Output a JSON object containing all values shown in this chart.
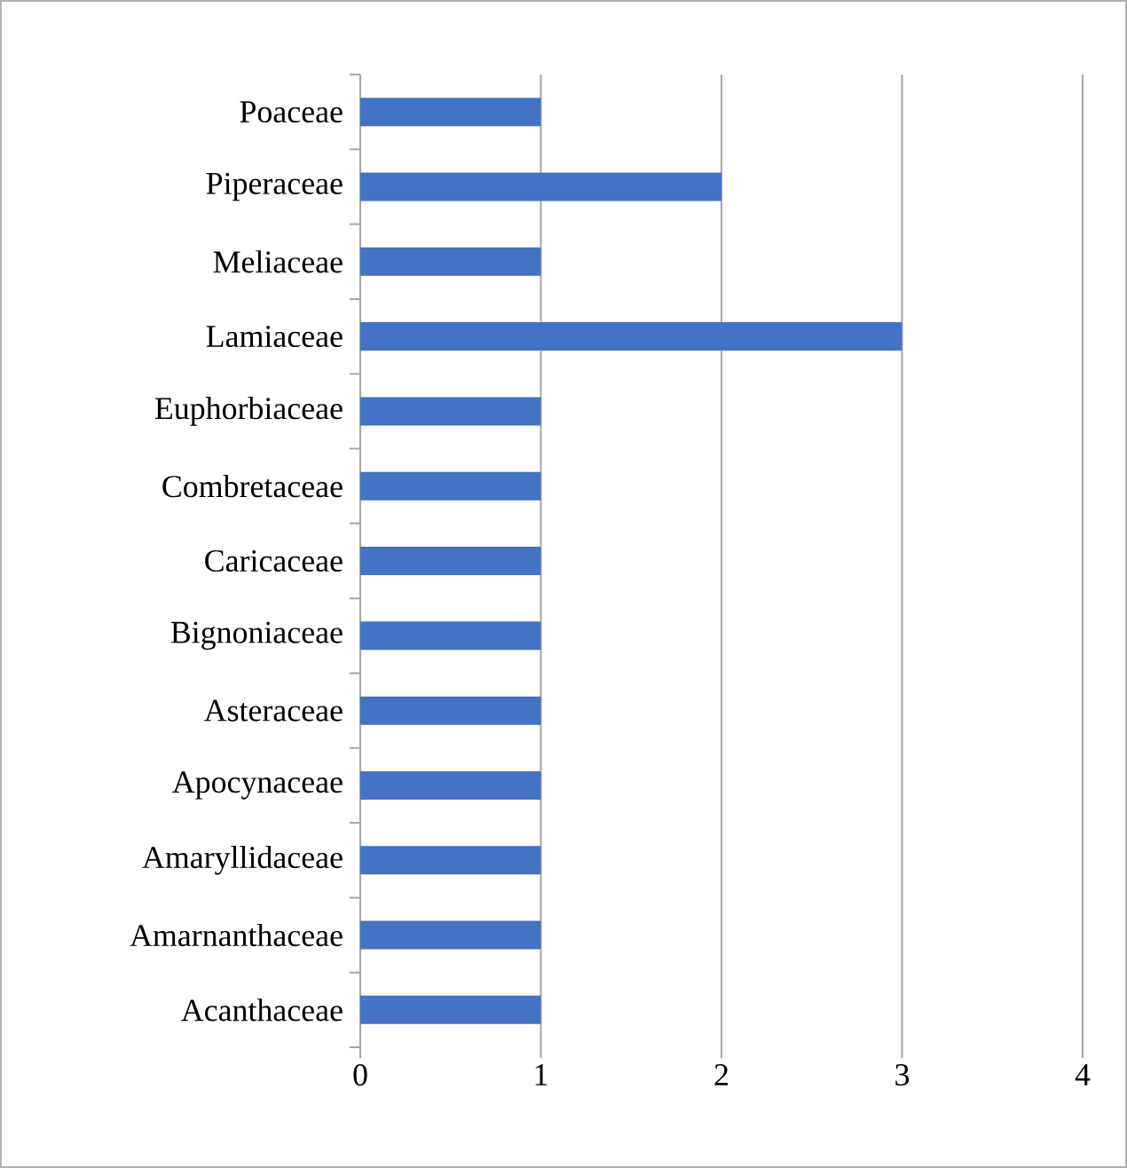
{
  "chart_data": {
    "type": "bar",
    "orientation": "horizontal",
    "categories": [
      "Poaceae",
      "Piperaceae",
      "Meliaceae",
      "Lamiaceae",
      "Euphorbiaceae",
      "Combretaceae",
      "Caricaceae",
      "Bignoniaceae",
      "Asteraceae",
      "Apocynaceae",
      "Amaryllidaceae",
      "Amarnanthaceae",
      "Acanthaceae"
    ],
    "values": [
      1,
      2,
      1,
      3,
      1,
      1,
      1,
      1,
      1,
      1,
      1,
      1,
      1
    ],
    "color": "#4472c4",
    "xlim": [
      0,
      4
    ],
    "xticks": [
      0,
      1,
      2,
      3,
      4
    ],
    "grid": "x"
  }
}
